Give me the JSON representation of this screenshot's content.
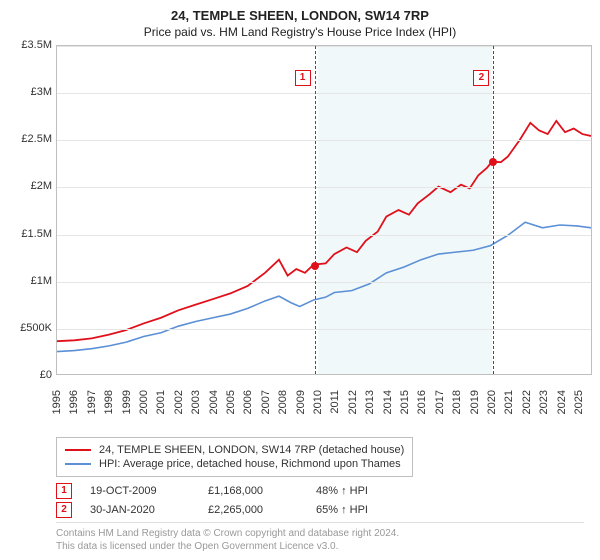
{
  "title": {
    "main": "24, TEMPLE SHEEN, LONDON, SW14 7RP",
    "sub": "Price paid vs. HM Land Registry's House Price Index (HPI)",
    "fontsize_main": 13,
    "fontsize_sub": 12,
    "color": "#222222"
  },
  "chart": {
    "type": "line",
    "background_color": "#ffffff",
    "grid_color": "#e5e5e5",
    "border_color": "#bfbfbf",
    "shaded_region_color": "rgba(173,216,230,0.18)",
    "shaded_region_start_year": 2010,
    "shaded_region_end_year": 2020,
    "ylim": [
      0,
      3500000
    ],
    "ytick_step": 500000,
    "ytick_labels": [
      "£0",
      "£500K",
      "£1M",
      "£1.5M",
      "£2M",
      "£2.5M",
      "£3M",
      "£3.5M"
    ],
    "ylabel_fontsize": 11,
    "xlim": [
      1995,
      2025.8
    ],
    "xticks": [
      1995,
      1996,
      1997,
      1998,
      1999,
      2000,
      2001,
      2002,
      2003,
      2004,
      2005,
      2006,
      2007,
      2008,
      2009,
      2010,
      2011,
      2012,
      2013,
      2014,
      2015,
      2016,
      2017,
      2018,
      2019,
      2020,
      2021,
      2022,
      2023,
      2024,
      2025
    ],
    "xlabel_fontsize": 11,
    "xlabel_rotation": -90,
    "series": [
      {
        "name": "24, TEMPLE SHEEN, LONDON, SW14 7RP (detached house)",
        "color": "#e0101a",
        "line_width": 1.8,
        "data": [
          [
            1995,
            350000
          ],
          [
            1996,
            360000
          ],
          [
            1997,
            380000
          ],
          [
            1998,
            420000
          ],
          [
            1999,
            470000
          ],
          [
            2000,
            540000
          ],
          [
            2001,
            600000
          ],
          [
            2002,
            680000
          ],
          [
            2003,
            740000
          ],
          [
            2004,
            800000
          ],
          [
            2005,
            860000
          ],
          [
            2006,
            940000
          ],
          [
            2007,
            1080000
          ],
          [
            2007.8,
            1220000
          ],
          [
            2008.3,
            1050000
          ],
          [
            2008.8,
            1120000
          ],
          [
            2009.3,
            1080000
          ],
          [
            2009.8,
            1168000
          ],
          [
            2010.5,
            1180000
          ],
          [
            2011,
            1280000
          ],
          [
            2011.7,
            1350000
          ],
          [
            2012.3,
            1300000
          ],
          [
            2012.8,
            1420000
          ],
          [
            2013.5,
            1520000
          ],
          [
            2014,
            1680000
          ],
          [
            2014.7,
            1750000
          ],
          [
            2015.3,
            1700000
          ],
          [
            2015.8,
            1820000
          ],
          [
            2016.5,
            1920000
          ],
          [
            2017,
            2000000
          ],
          [
            2017.7,
            1940000
          ],
          [
            2018.3,
            2020000
          ],
          [
            2018.8,
            1980000
          ],
          [
            2019.3,
            2120000
          ],
          [
            2019.8,
            2200000
          ],
          [
            2020.08,
            2265000
          ],
          [
            2020.6,
            2260000
          ],
          [
            2021,
            2320000
          ],
          [
            2021.7,
            2500000
          ],
          [
            2022.3,
            2680000
          ],
          [
            2022.8,
            2600000
          ],
          [
            2023.3,
            2560000
          ],
          [
            2023.8,
            2700000
          ],
          [
            2024.3,
            2580000
          ],
          [
            2024.8,
            2620000
          ],
          [
            2025.3,
            2560000
          ],
          [
            2025.8,
            2540000
          ]
        ]
      },
      {
        "name": "HPI: Average price, detached house, Richmond upon Thames",
        "color": "#5b8fd6",
        "line_width": 1.6,
        "data": [
          [
            1995,
            240000
          ],
          [
            1996,
            250000
          ],
          [
            1997,
            270000
          ],
          [
            1998,
            300000
          ],
          [
            1999,
            340000
          ],
          [
            2000,
            400000
          ],
          [
            2001,
            440000
          ],
          [
            2002,
            510000
          ],
          [
            2003,
            560000
          ],
          [
            2004,
            600000
          ],
          [
            2005,
            640000
          ],
          [
            2006,
            700000
          ],
          [
            2007,
            780000
          ],
          [
            2007.8,
            830000
          ],
          [
            2008.5,
            760000
          ],
          [
            2009,
            720000
          ],
          [
            2009.8,
            790000
          ],
          [
            2010.5,
            820000
          ],
          [
            2011,
            870000
          ],
          [
            2012,
            890000
          ],
          [
            2013,
            960000
          ],
          [
            2014,
            1080000
          ],
          [
            2015,
            1140000
          ],
          [
            2016,
            1220000
          ],
          [
            2017,
            1280000
          ],
          [
            2018,
            1300000
          ],
          [
            2019,
            1320000
          ],
          [
            2020,
            1370000
          ],
          [
            2021,
            1480000
          ],
          [
            2022,
            1620000
          ],
          [
            2023,
            1560000
          ],
          [
            2024,
            1590000
          ],
          [
            2025,
            1580000
          ],
          [
            2025.8,
            1560000
          ]
        ]
      }
    ],
    "events": [
      {
        "index": 1,
        "year": 2009.8,
        "value": 1168000,
        "label": "1"
      },
      {
        "index": 2,
        "year": 2020.08,
        "value": 2265000,
        "label": "2"
      }
    ]
  },
  "legend": {
    "border_color": "#bfbfbf",
    "fontsize": 11,
    "items": [
      {
        "color": "#e0101a",
        "label": "24, TEMPLE SHEEN, LONDON, SW14 7RP (detached house)"
      },
      {
        "color": "#5b8fd6",
        "label": "HPI: Average price, detached house, Richmond upon Thames"
      }
    ]
  },
  "sales": [
    {
      "marker": "1",
      "date": "19-OCT-2009",
      "price": "£1,168,000",
      "delta": "48% ↑ HPI"
    },
    {
      "marker": "2",
      "date": "30-JAN-2020",
      "price": "£2,265,000",
      "delta": "65% ↑ HPI"
    }
  ],
  "footer": {
    "line1": "Contains HM Land Registry data © Crown copyright and database right 2024.",
    "line2": "This data is licensed under the Open Government Licence v3.0.",
    "color": "#999999",
    "fontsize": 10
  }
}
